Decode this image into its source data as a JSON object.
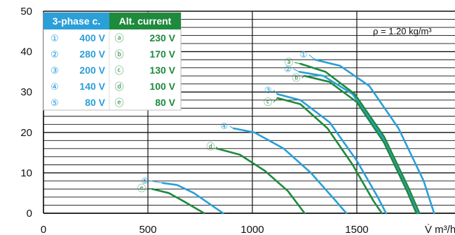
{
  "chart_data": {
    "type": "line",
    "x_unit": "V̇ m³/h",
    "xlim": [
      0,
      1970
    ],
    "ylim": [
      0,
      50
    ],
    "x_ticks": [
      "0",
      "500",
      "1000",
      "1500"
    ],
    "y_ticks": [
      "0",
      "10",
      "20",
      "30",
      "40",
      "50"
    ],
    "density_note": "ρ = 1.20 kg/m³",
    "colors": {
      "three_phase": "#2a9fd8",
      "alt_current": "#1e8a3c",
      "grid": "#111111"
    },
    "legend": {
      "headers": [
        "3-phase c.",
        "Alt. current"
      ],
      "rows": [
        {
          "mark_3": "①",
          "val_3": "400 V",
          "mark_a": "ⓐ",
          "val_a": "230 V"
        },
        {
          "mark_3": "②",
          "val_3": "280 V",
          "mark_a": "ⓑ",
          "val_a": "170 V"
        },
        {
          "mark_3": "③",
          "val_3": "200 V",
          "mark_a": "ⓒ",
          "val_a": "130 V"
        },
        {
          "mark_3": "④",
          "val_3": "140 V",
          "mark_a": "ⓓ",
          "val_a": "100 V"
        },
        {
          "mark_3": "⑤",
          "val_3": "80 V",
          "mark_a": "ⓔ",
          "val_a": "80 V"
        }
      ]
    },
    "series": [
      {
        "name": "①",
        "group": "three_phase",
        "label_at": [
          1245,
          39.2
        ],
        "points": [
          [
            1300,
            38
          ],
          [
            1420,
            36.5
          ],
          [
            1560,
            31.5
          ],
          [
            1700,
            21
          ],
          [
            1820,
            8
          ],
          [
            1870,
            0
          ]
        ]
      },
      {
        "name": "②",
        "group": "three_phase",
        "label_at": [
          1170,
          35.7
        ],
        "points": [
          [
            1225,
            35
          ],
          [
            1340,
            34
          ],
          [
            1480,
            29.5
          ],
          [
            1620,
            19
          ],
          [
            1740,
            6
          ],
          [
            1790,
            0
          ]
        ]
      },
      {
        "name": "③",
        "group": "three_phase",
        "label_at": [
          1075,
          30.5
        ],
        "points": [
          [
            1120,
            29.5
          ],
          [
            1230,
            28
          ],
          [
            1370,
            22.5
          ],
          [
            1500,
            13
          ],
          [
            1600,
            4
          ],
          [
            1640,
            0
          ]
        ]
      },
      {
        "name": "④",
        "group": "three_phase",
        "label_at": [
          865,
          21.5
        ],
        "points": [
          [
            910,
            21
          ],
          [
            1010,
            20
          ],
          [
            1150,
            16
          ],
          [
            1280,
            10
          ],
          [
            1400,
            3
          ],
          [
            1450,
            0
          ]
        ]
      },
      {
        "name": "⑤",
        "group": "three_phase",
        "label_at": [
          485,
          8
        ],
        "points": [
          [
            570,
            7.5
          ],
          [
            640,
            7
          ],
          [
            720,
            5
          ],
          [
            790,
            2.5
          ],
          [
            860,
            0
          ]
        ]
      },
      {
        "name": "ⓐ",
        "group": "alt_current",
        "label_at": [
          1175,
          37.3
        ],
        "points": [
          [
            1230,
            37
          ],
          [
            1350,
            35
          ],
          [
            1490,
            29.5
          ],
          [
            1630,
            19
          ],
          [
            1750,
            6
          ],
          [
            1800,
            0
          ]
        ]
      },
      {
        "name": "ⓑ",
        "group": "alt_current",
        "label_at": [
          1210,
          33.5
        ],
        "points": [
          [
            1250,
            34
          ],
          [
            1370,
            32.5
          ],
          [
            1500,
            27.5
          ],
          [
            1630,
            17.5
          ],
          [
            1740,
            5.5
          ],
          [
            1785,
            0
          ]
        ]
      },
      {
        "name": "ⓒ",
        "group": "alt_current",
        "label_at": [
          1075,
          27.5
        ],
        "points": [
          [
            1120,
            28.5
          ],
          [
            1230,
            27
          ],
          [
            1360,
            21
          ],
          [
            1480,
            12
          ],
          [
            1580,
            3
          ],
          [
            1620,
            0
          ]
        ]
      },
      {
        "name": "ⓓ",
        "group": "alt_current",
        "label_at": [
          800,
          16.5
        ],
        "points": [
          [
            830,
            16
          ],
          [
            940,
            14.5
          ],
          [
            1060,
            10.5
          ],
          [
            1170,
            5.5
          ],
          [
            1250,
            0
          ]
        ]
      },
      {
        "name": "ⓔ",
        "group": "alt_current",
        "label_at": [
          470,
          6.2
        ],
        "points": [
          [
            520,
            6
          ],
          [
            600,
            5
          ],
          [
            670,
            3
          ],
          [
            730,
            1.2
          ],
          [
            770,
            0
          ]
        ]
      }
    ]
  }
}
